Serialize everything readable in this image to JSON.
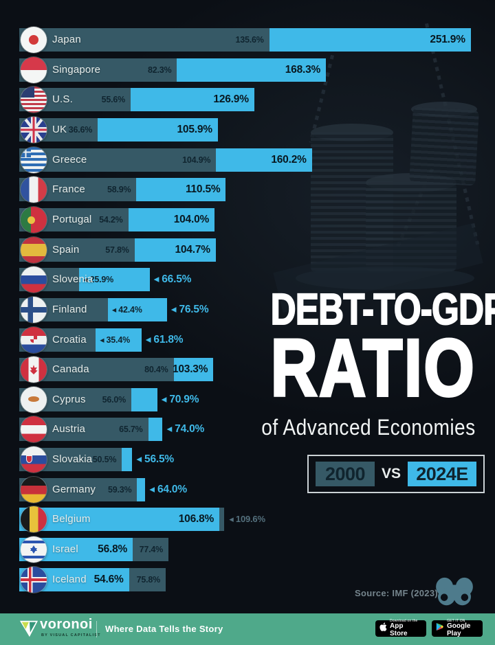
{
  "title": {
    "line1": "DEBT-TO-GDP",
    "line2": "RATIO",
    "line3": "of Advanced Economies"
  },
  "legend": {
    "year_2000": "2000",
    "vs": "VS",
    "year_2024": "2024E"
  },
  "source": "Source: IMF (2023)",
  "footer": {
    "brand": "voronoi",
    "byline": "BY VISUAL CAPITALIST",
    "tagline": "Where Data Tells the Story",
    "appstore_top": "Download on the",
    "appstore_bottom": "App Store",
    "play_top": "GET IT ON",
    "play_bottom": "Google Play"
  },
  "colors": {
    "background": "#0C1118",
    "bar_2000_teal": "#365966",
    "bar_2024_cyan": "#3FB9E8",
    "label_dark": "#102530",
    "label_outside_cyan": "#3FB9E8",
    "label_outside_gray": "#54707D",
    "footer_green": "#4FA98A",
    "owl": "#4E7B8C"
  },
  "chart_data": {
    "type": "bar",
    "orientation": "horizontal",
    "unit": "%",
    "series_names": [
      "2000",
      "2024E"
    ],
    "value_format": "one-decimal-percent",
    "legend_position": "right-middle",
    "grid": false,
    "rows": [
      {
        "country": "Japan",
        "flag": "jp",
        "v2000": 135.6,
        "v2024": 251.9,
        "l2000_out": false,
        "l2024_out": false
      },
      {
        "country": "Singapore",
        "flag": "sg",
        "v2000": 82.3,
        "v2024": 168.3,
        "l2000_out": false,
        "l2024_out": false
      },
      {
        "country": "U.S.",
        "flag": "us",
        "v2000": 55.6,
        "v2024": 126.9,
        "l2000_out": false,
        "l2024_out": false
      },
      {
        "country": "UK",
        "flag": "uk",
        "v2000": 36.6,
        "v2024": 105.9,
        "l2000_out": false,
        "l2024_out": false
      },
      {
        "country": "Greece",
        "flag": "gr",
        "v2000": 104.9,
        "v2024": 160.2,
        "l2000_out": false,
        "l2024_out": false
      },
      {
        "country": "France",
        "flag": "fr",
        "v2000": 58.9,
        "v2024": 110.5,
        "l2000_out": false,
        "l2024_out": false
      },
      {
        "country": "Portugal",
        "flag": "pt",
        "v2000": 54.2,
        "v2024": 104.0,
        "l2000_out": false,
        "l2024_out": false
      },
      {
        "country": "Spain",
        "flag": "es",
        "v2000": 57.8,
        "v2024": 104.7,
        "l2000_out": false,
        "l2024_out": false
      },
      {
        "country": "Slovenia",
        "flag": "si",
        "v2000": 25.9,
        "v2024": 66.5,
        "l2000_out": true,
        "l2024_out": true
      },
      {
        "country": "Finland",
        "flag": "fi",
        "v2000": 42.4,
        "v2024": 76.5,
        "l2000_out": true,
        "l2024_out": true
      },
      {
        "country": "Croatia",
        "flag": "hr",
        "v2000": 35.4,
        "v2024": 61.8,
        "l2000_out": true,
        "l2024_out": true
      },
      {
        "country": "Canada",
        "flag": "ca",
        "v2000": 80.4,
        "v2024": 103.3,
        "l2000_out": false,
        "l2024_out": false
      },
      {
        "country": "Cyprus",
        "flag": "cy",
        "v2000": 56.0,
        "v2024": 70.9,
        "l2000_out": false,
        "l2024_out": true
      },
      {
        "country": "Austria",
        "flag": "at",
        "v2000": 65.7,
        "v2024": 74.0,
        "l2000_out": false,
        "l2024_out": true
      },
      {
        "country": "Slovakia",
        "flag": "sk",
        "v2000": 50.5,
        "v2024": 56.5,
        "l2000_out": false,
        "l2024_out": true
      },
      {
        "country": "Germany",
        "flag": "de",
        "v2000": 59.3,
        "v2024": 64.0,
        "l2000_out": false,
        "l2024_out": true
      },
      {
        "country": "Belgium",
        "flag": "be",
        "v2000": 109.6,
        "v2024": 106.8,
        "l2000_out": true,
        "l2024_out": false
      },
      {
        "country": "Israel",
        "flag": "il",
        "v2000": 77.4,
        "v2024": 56.8,
        "l2000_out": false,
        "l2024_out": false
      },
      {
        "country": "Iceland",
        "flag": "is",
        "v2000": 75.8,
        "v2024": 54.6,
        "l2000_out": false,
        "l2024_out": false
      }
    ]
  }
}
